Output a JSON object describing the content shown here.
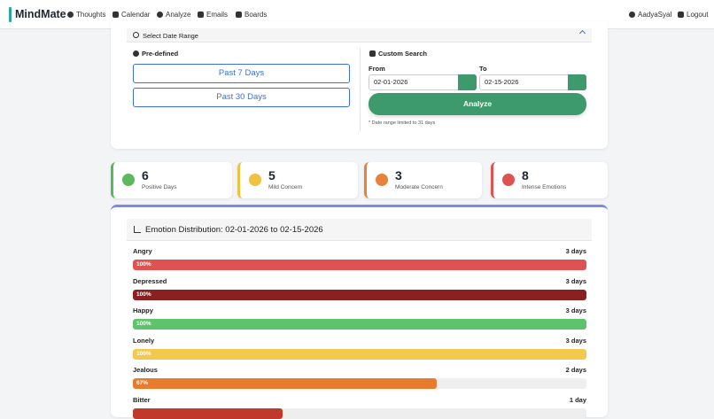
{
  "nav": {
    "brand": "MindMate",
    "links": [
      "Thoughts",
      "Calendar",
      "Analyze",
      "Emails",
      "Boards"
    ],
    "user": "AadyaSyal",
    "logout": "Logout"
  },
  "date_range": {
    "title": "Select Date Range",
    "predefined": {
      "title": "Pre-defined",
      "buttons": [
        "Past 7 Days",
        "Past 30 Days"
      ]
    },
    "custom": {
      "title": "Custom Search",
      "from_label": "From",
      "to_label": "To",
      "from": "02-01-2026",
      "to": "02-15-2026",
      "button": "Analyze",
      "note": "* Date range limited to 31 days"
    }
  },
  "stats": [
    {
      "value": 6,
      "label": "Positive Days",
      "color": "#5cb85c"
    },
    {
      "value": 5,
      "label": "Mild Concern",
      "color": "#f0c040"
    },
    {
      "value": 3,
      "label": "Moderate Concern",
      "color": "#e8823a"
    },
    {
      "value": 8,
      "label": "Intense Emotions",
      "color": "#e05252"
    }
  ],
  "distribution": {
    "title": "Emotion Distribution: 02-01-2026 to 02-15-2026",
    "emotions": [
      {
        "name": "Angry",
        "days": "3 days",
        "percent": 100,
        "percent_label": "100%",
        "color": "#e05252"
      },
      {
        "name": "Depressed",
        "days": "3 days",
        "percent": 100,
        "percent_label": "100%",
        "color": "#8b2020"
      },
      {
        "name": "Happy",
        "days": "3 days",
        "percent": 100,
        "percent_label": "100%",
        "color": "#5cc46a"
      },
      {
        "name": "Lonely",
        "days": "3 days",
        "percent": 100,
        "percent_label": "100%",
        "color": "#f2c94c"
      },
      {
        "name": "Jealous",
        "days": "2 days",
        "percent": 67,
        "percent_label": "67%",
        "color": "#e87c2e"
      },
      {
        "name": "Bitter",
        "days": "1 day",
        "percent": 33,
        "color": "#c0392b"
      }
    ]
  }
}
